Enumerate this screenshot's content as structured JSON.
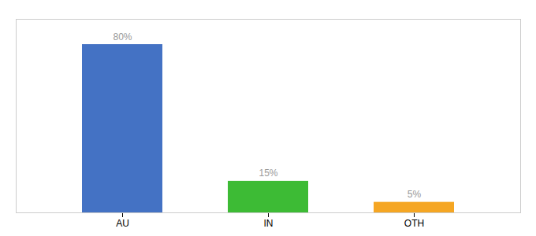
{
  "chart_data": {
    "type": "bar",
    "categories": [
      "AU",
      "IN",
      "OTH"
    ],
    "values": [
      80,
      15,
      5
    ],
    "value_labels": [
      "80%",
      "15%",
      "5%"
    ],
    "colors": [
      "#4472c4",
      "#3dbb35",
      "#f5a623"
    ],
    "ylim": [
      0,
      92
    ],
    "data_labels": true,
    "tick_labels": "x",
    "grid": false
  }
}
